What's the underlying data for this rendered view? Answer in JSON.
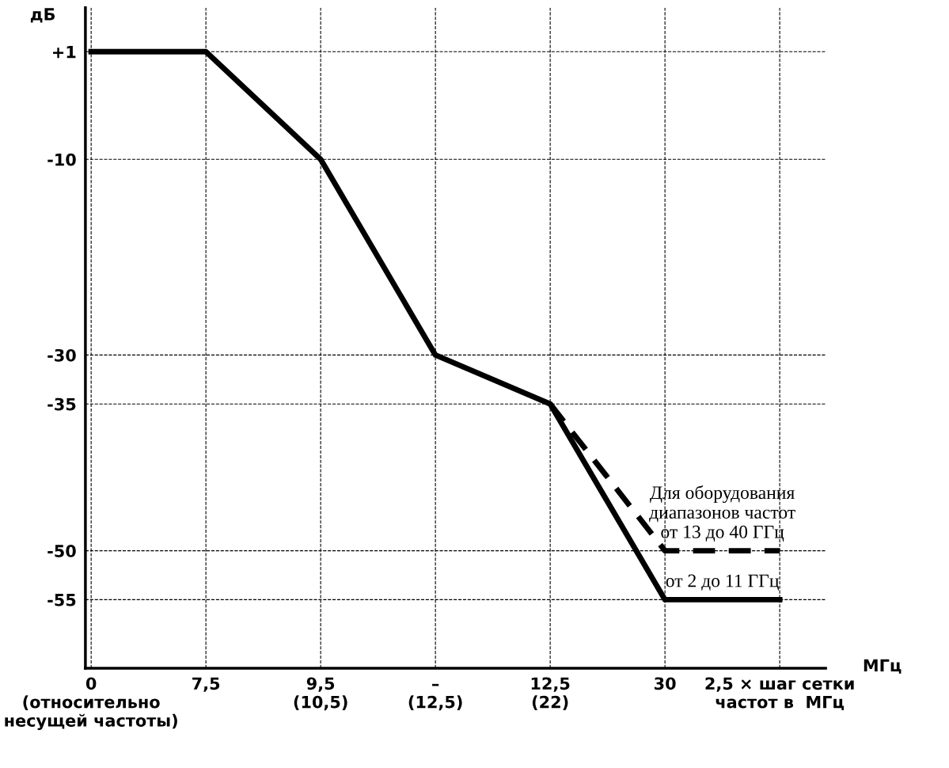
{
  "chart_data": {
    "type": "line",
    "categories": [
      "0\n(относительно\nнесущей частоты)",
      "7,5",
      "9,5\n(10,5)",
      "–\n(12,5)",
      "12,5\n(22)",
      "30",
      "2,5 × шаг сетки\nчастот в  МГц"
    ],
    "series": [
      {
        "name": "от 2 до 11 ГГц",
        "color": "#000000",
        "line_style": "solid",
        "values": [
          1,
          1,
          -10,
          -30,
          -35,
          -55,
          -55
        ]
      },
      {
        "name": "Для оборудования\nдиапазонов частот\nот 13 до 40 ГГц",
        "color": "#000000",
        "line_style": "dashed",
        "values": [
          null,
          null,
          null,
          null,
          -35,
          -50,
          -50
        ]
      }
    ],
    "ylabel": "дБ",
    "xlabel": "МГц",
    "ylim": [
      -62,
      5.5
    ],
    "yticks": [
      {
        "value": 1,
        "label": "+1"
      },
      -10,
      -30,
      -35,
      -50,
      -55
    ],
    "grid": true,
    "marker": "none",
    "legend": false
  }
}
